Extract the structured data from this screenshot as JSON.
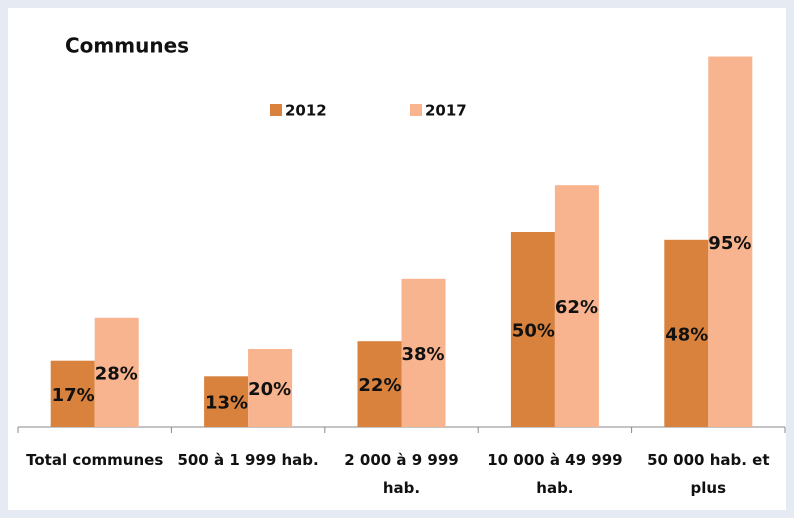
{
  "chart_data": {
    "type": "bar",
    "title": "Communes",
    "categories": [
      "Total communes",
      "500 à 1 999 hab.",
      "2 000 à 9 999 hab.",
      "10 000 à 49 999 hab.",
      "50 000 hab. et plus"
    ],
    "series": [
      {
        "name": "2012",
        "color": "#d9823e",
        "values": [
          17,
          13,
          22,
          50,
          48
        ],
        "value_labels": [
          "17%",
          "13%",
          "22%",
          "50%",
          "48%"
        ]
      },
      {
        "name": "2017",
        "color": "#f8b48e",
        "values": [
          28,
          20,
          38,
          62,
          95
        ],
        "value_labels": [
          "28%",
          "20%",
          "38%",
          "62%",
          "95%"
        ]
      }
    ],
    "legend": "top"
  }
}
